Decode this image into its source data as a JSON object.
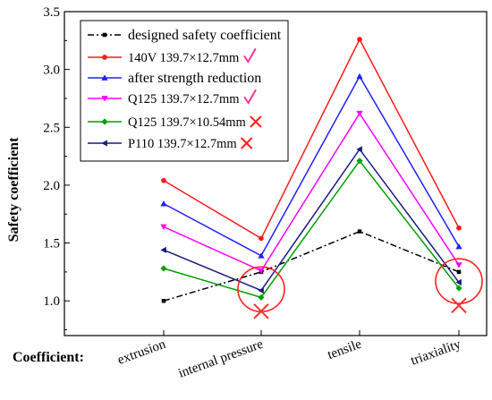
{
  "chart_data": {
    "type": "line",
    "ylabel": "Safety coefficient",
    "xlabel": "Coefficient:",
    "categories": [
      "extrusion",
      "internal pressure",
      "tensile",
      "triaxiality"
    ],
    "ylim": [
      0.7,
      3.5
    ],
    "yticks": [
      1.0,
      1.5,
      2.0,
      2.5,
      3.0,
      3.5
    ],
    "ytick_labels": [
      "1.0",
      "1.5",
      "2.0",
      "2.5",
      "3.0",
      "3.5"
    ],
    "grid": false,
    "legend_position": "top-left",
    "series": [
      {
        "name": "designed safety coefficient",
        "color": "#000000",
        "marker": "square",
        "dash": true,
        "values": [
          1.0,
          1.25,
          1.6,
          1.25
        ]
      },
      {
        "name": "140V 139.7×12.7mm",
        "color": "#ff1a1a",
        "marker": "circle",
        "dash": false,
        "status": "check",
        "values": [
          2.04,
          1.54,
          3.26,
          1.63
        ]
      },
      {
        "name": "after strength reduction",
        "color": "#2020ff",
        "marker": "triangle-up",
        "dash": false,
        "values": [
          1.84,
          1.39,
          2.94,
          1.47
        ]
      },
      {
        "name": "Q125 139.7×12.7mm",
        "color": "#ff00ff",
        "marker": "triangle-down",
        "dash": false,
        "status": "check",
        "values": [
          1.64,
          1.26,
          2.62,
          1.31
        ]
      },
      {
        "name": "Q125 139.7×10.54mm",
        "color": "#00a000",
        "marker": "diamond",
        "dash": false,
        "status": "cross",
        "values": [
          1.28,
          1.03,
          2.21,
          1.11
        ]
      },
      {
        "name": "P110 139.7×12.7mm",
        "color": "#1a1a80",
        "marker": "triangle-left",
        "dash": false,
        "status": "cross",
        "values": [
          1.44,
          1.09,
          2.31,
          1.16
        ]
      }
    ],
    "annotations": [
      {
        "type": "circle",
        "category": "internal pressure",
        "y": 1.1,
        "color": "#ff2020"
      },
      {
        "type": "circle",
        "category": "triaxiality",
        "y": 1.17,
        "color": "#ff2020"
      },
      {
        "type": "cross",
        "category": "internal pressure",
        "y": 0.91,
        "color": "#ff3030"
      },
      {
        "type": "cross",
        "category": "triaxiality",
        "y": 0.96,
        "color": "#ff3030"
      }
    ]
  },
  "marks": {
    "check_color": "#ff3399",
    "cross_color": "#ff2020"
  }
}
